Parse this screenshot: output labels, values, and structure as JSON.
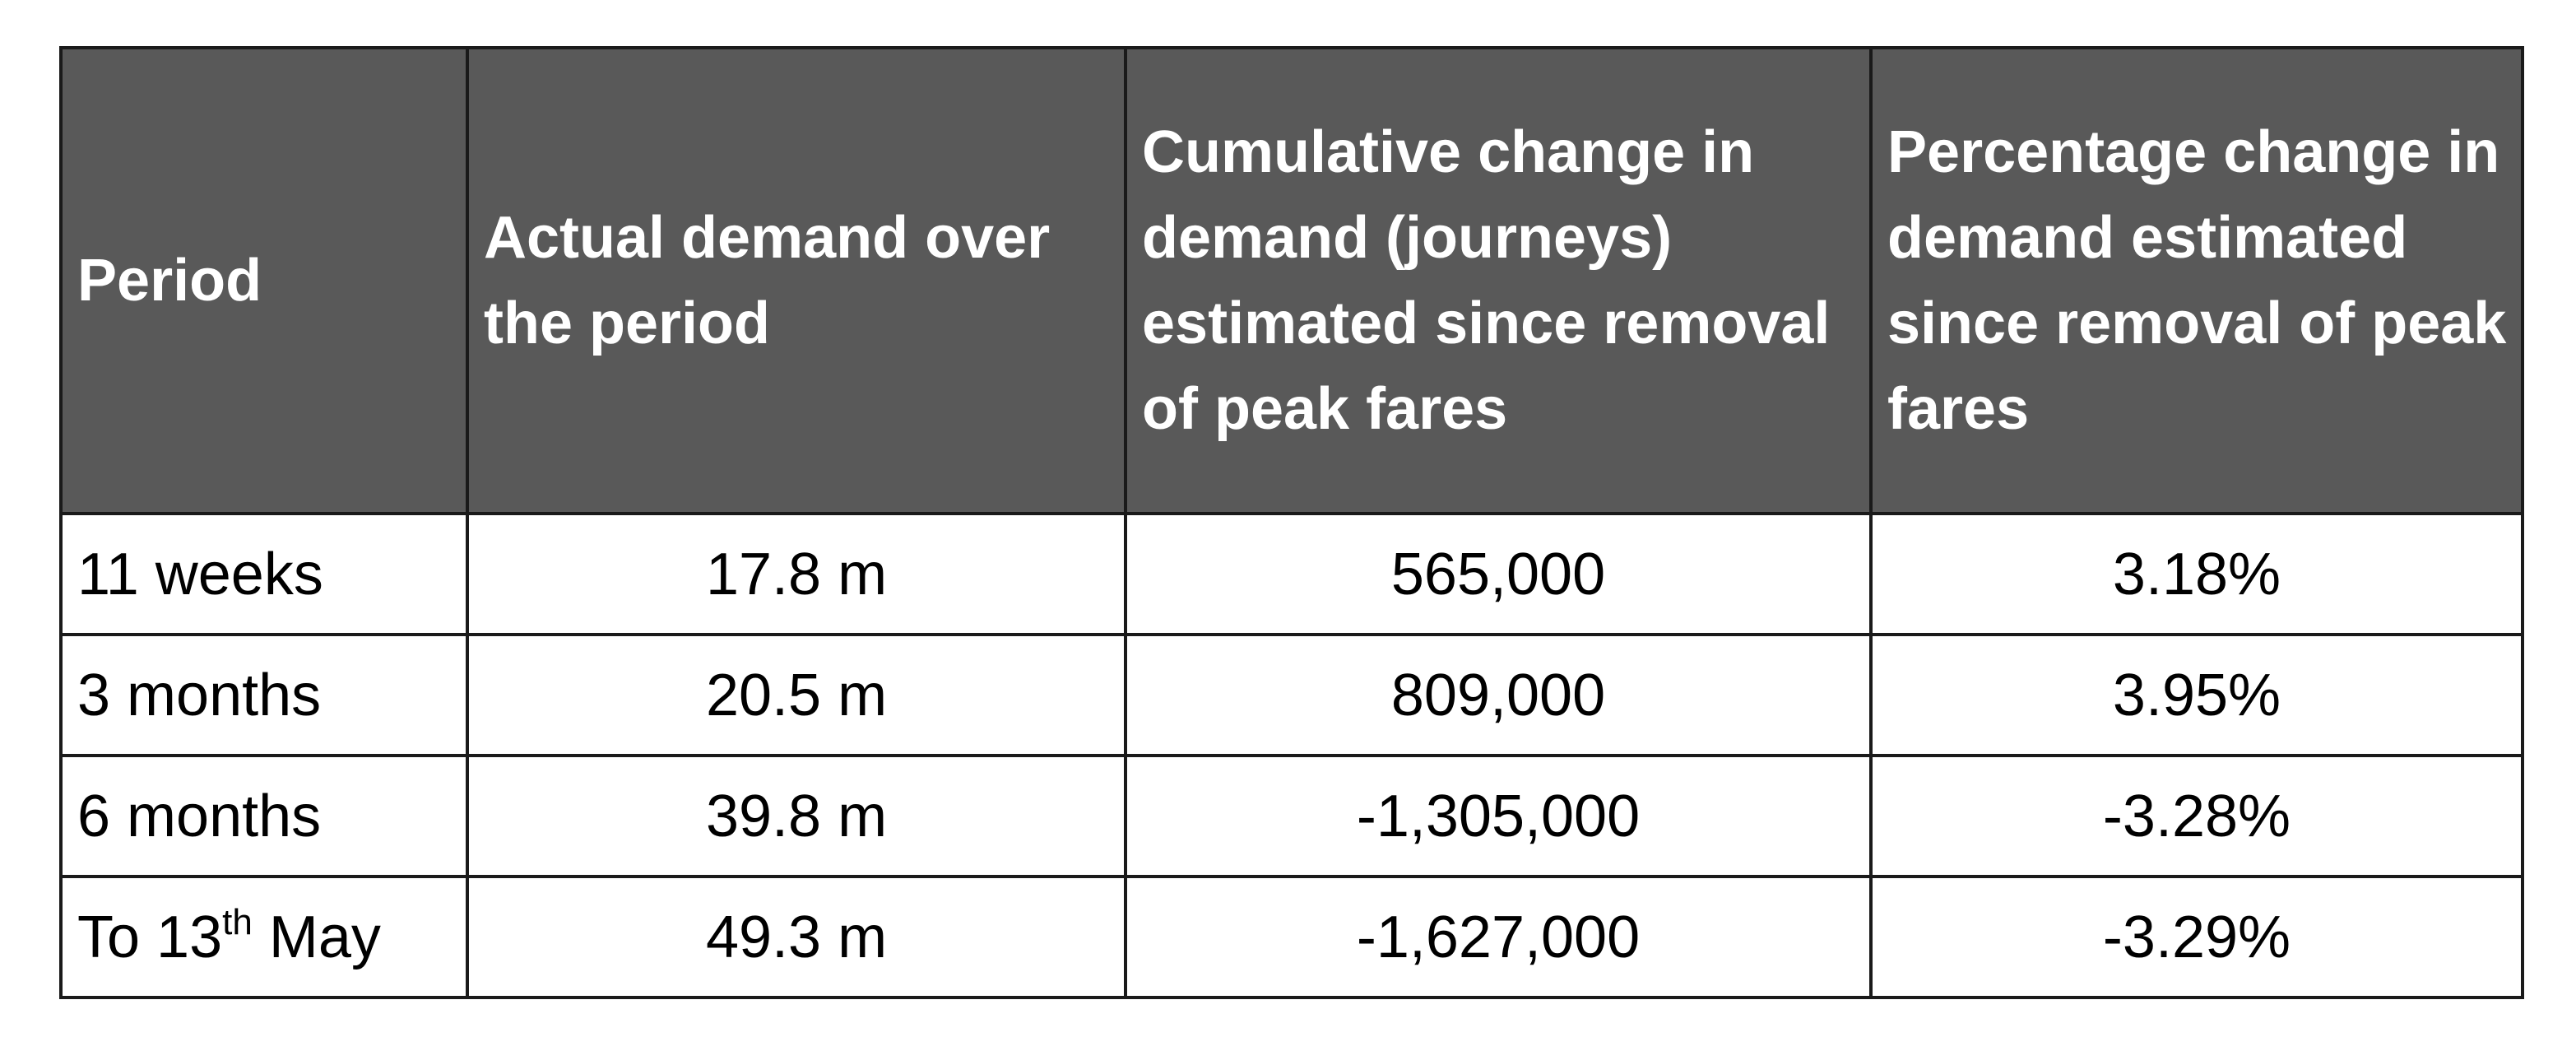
{
  "table": {
    "headers": {
      "period": "Period",
      "actual_demand": "Actual demand over the period",
      "cumulative_change": "Cumulative change in demand (journeys) estimated since removal of peak fares",
      "percentage_change": "Percentage change in demand estimated since removal of peak fares"
    },
    "rows": [
      {
        "period": "11 weeks",
        "actual_demand": "17.8 m",
        "cumulative_change": "565,000",
        "percentage_change": "3.18%"
      },
      {
        "period": "3 months",
        "actual_demand": "20.5 m",
        "cumulative_change": "809,000",
        "percentage_change": "3.95%"
      },
      {
        "period": "6 months",
        "actual_demand": "39.8 m",
        "cumulative_change": "-1,305,000",
        "percentage_change": "-3.28%"
      },
      {
        "period_prefix": "To 13",
        "period_sup": "th",
        "period_suffix": " May",
        "actual_demand": "49.3 m",
        "cumulative_change": "-1,627,000",
        "percentage_change": "-3.29%"
      }
    ]
  }
}
